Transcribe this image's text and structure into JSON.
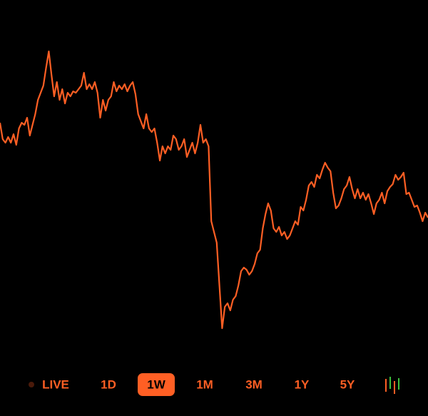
{
  "chart_data": {
    "type": "line",
    "color": "#ff5f24",
    "values": [
      328,
      305,
      300,
      308,
      300,
      312,
      297,
      320,
      328,
      325,
      335,
      310,
      325,
      340,
      360,
      370,
      380,
      405,
      428,
      395,
      365,
      385,
      360,
      375,
      355,
      370,
      365,
      372,
      370,
      375,
      380,
      398,
      375,
      382,
      375,
      385,
      370,
      335,
      360,
      345,
      360,
      365,
      385,
      372,
      380,
      375,
      382,
      372,
      380,
      385,
      368,
      340,
      330,
      320,
      340,
      320,
      315,
      320,
      300,
      275,
      295,
      285,
      295,
      290,
      310,
      305,
      290,
      295,
      305,
      280,
      290,
      300,
      285,
      300,
      325,
      300,
      305,
      295,
      190,
      175,
      160,
      100,
      40,
      70,
      75,
      65,
      80,
      85,
      100,
      120,
      125,
      122,
      115,
      120,
      130,
      145,
      150,
      180,
      200,
      215,
      205,
      180,
      175,
      182,
      170,
      175,
      165,
      170,
      180,
      190,
      185,
      210,
      205,
      220,
      240,
      245,
      238,
      255,
      250,
      262,
      272,
      265,
      260,
      230,
      208,
      212,
      222,
      235,
      240,
      252,
      235,
      222,
      235,
      222,
      230,
      220,
      228,
      215,
      200,
      215,
      220,
      230,
      215,
      232,
      238,
      242,
      255,
      248,
      252,
      258,
      228,
      230,
      220,
      210,
      212,
      202,
      190,
      202,
      195
    ]
  },
  "range_selector": {
    "options": [
      "LIVE",
      "1D",
      "1W",
      "1M",
      "3M",
      "1Y",
      "5Y"
    ],
    "selected": 2
  }
}
